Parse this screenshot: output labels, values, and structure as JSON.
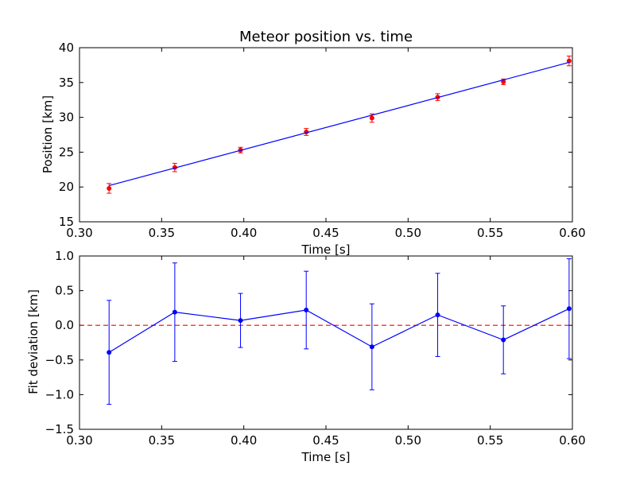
{
  "colors": {
    "fit_line": "#0000ff",
    "measurement": "#ff0000",
    "deviation": "#0000ff",
    "zero_line": "#ff0000",
    "axes": "#000000"
  },
  "chart_data": [
    {
      "type": "line",
      "title": "Meteor position vs. time",
      "xlabel": "Time [s]",
      "ylabel": "Position [km]",
      "xlim": [
        0.3,
        0.6
      ],
      "ylim": [
        15,
        40
      ],
      "xticks": [
        0.3,
        0.35,
        0.4,
        0.45,
        0.5,
        0.55,
        0.6
      ],
      "xtick_labels": [
        "0.30",
        "0.35",
        "0.40",
        "0.45",
        "0.50",
        "0.55",
        "0.60"
      ],
      "yticks": [
        15,
        20,
        25,
        30,
        35,
        40
      ],
      "ytick_labels": [
        "15",
        "20",
        "25",
        "30",
        "35",
        "40"
      ],
      "grid": false,
      "series": [
        {
          "style": "errorbar-points",
          "x": [
            0.318,
            0.358,
            0.398,
            0.438,
            0.478,
            0.518,
            0.558,
            0.598
          ],
          "y": [
            19.8,
            22.8,
            25.3,
            27.9,
            29.9,
            32.9,
            35.1,
            38.1
          ],
          "yerr": [
            0.7,
            0.6,
            0.4,
            0.5,
            0.6,
            0.5,
            0.4,
            0.7
          ]
        },
        {
          "style": "line",
          "x": [
            0.318,
            0.598
          ],
          "y": [
            20.2,
            37.9
          ]
        }
      ]
    },
    {
      "type": "line",
      "xlabel": "Time [s]",
      "ylabel": "Fit deviation [km]",
      "xlim": [
        0.3,
        0.6
      ],
      "ylim": [
        -1.5,
        1.0
      ],
      "xticks": [
        0.3,
        0.35,
        0.4,
        0.45,
        0.5,
        0.55,
        0.6
      ],
      "xtick_labels": [
        "0.30",
        "0.35",
        "0.40",
        "0.45",
        "0.50",
        "0.55",
        "0.60"
      ],
      "yticks": [
        -1.5,
        -1.0,
        -0.5,
        0.0,
        0.5,
        1.0
      ],
      "ytick_labels": [
        "−1.5",
        "−1.0",
        "−0.5",
        "0.0",
        "0.5",
        "1.0"
      ],
      "grid": false,
      "reference_line": {
        "y": 0.0,
        "style": "dashed"
      },
      "series": [
        {
          "style": "errorbar-line",
          "x": [
            0.318,
            0.358,
            0.398,
            0.438,
            0.478,
            0.518,
            0.558,
            0.598
          ],
          "y": [
            -0.39,
            0.19,
            0.07,
            0.22,
            -0.31,
            0.15,
            -0.21,
            0.24
          ],
          "yerr": [
            0.75,
            0.71,
            0.39,
            0.56,
            0.62,
            0.6,
            0.49,
            0.72
          ]
        }
      ]
    }
  ]
}
